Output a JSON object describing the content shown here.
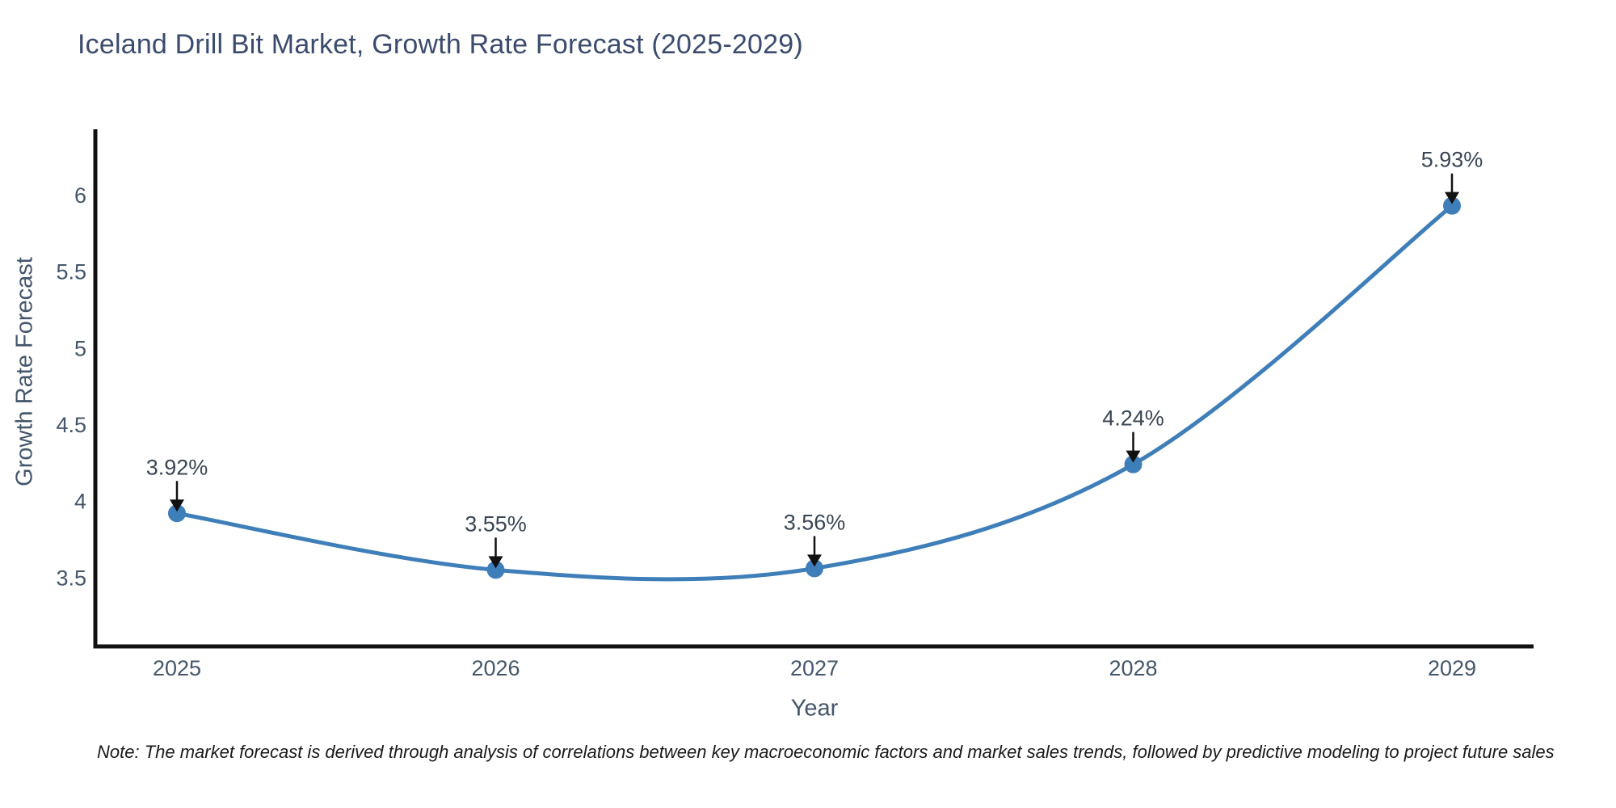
{
  "header": {
    "title": "Iceland Drill Bit Market, Growth Rate Forecast (2025-2029)"
  },
  "footnote": "Note: The market forecast is derived through analysis of correlations between key macroeconomic factors and market sales trends, followed by predictive modeling to project future sales",
  "chart_data": {
    "type": "line",
    "title": "Iceland Drill Bit Market, Growth Rate Forecast (2025-2029)",
    "xlabel": "Year",
    "ylabel": "Growth Rate Forecast",
    "categories": [
      "2025",
      "2026",
      "2027",
      "2028",
      "2029"
    ],
    "values": [
      3.92,
      3.55,
      3.56,
      4.24,
      5.93
    ],
    "point_labels": [
      "3.92%",
      "3.55%",
      "3.56%",
      "4.24%",
      "5.93%"
    ],
    "ytick_labels": [
      "3.5",
      "4",
      "4.5",
      "5",
      "5.5",
      "6"
    ],
    "ytick_values": [
      3.5,
      4,
      4.5,
      5,
      5.5,
      6
    ],
    "ylim": [
      3.05,
      6.43
    ],
    "line_shape": "spline",
    "grid": false,
    "legend": null,
    "annotations": "arrow-down-to-each-point",
    "colors": {
      "series": "#3e7eb9",
      "axis_line": "#111111",
      "tick_label": "#44566b",
      "axis_title": "#44566b",
      "chart_title": "#3b4b6e",
      "annotation_text": "#3a4655",
      "arrow": "#111111",
      "note_text": "#1a1a1a",
      "background": "#ffffff"
    }
  }
}
